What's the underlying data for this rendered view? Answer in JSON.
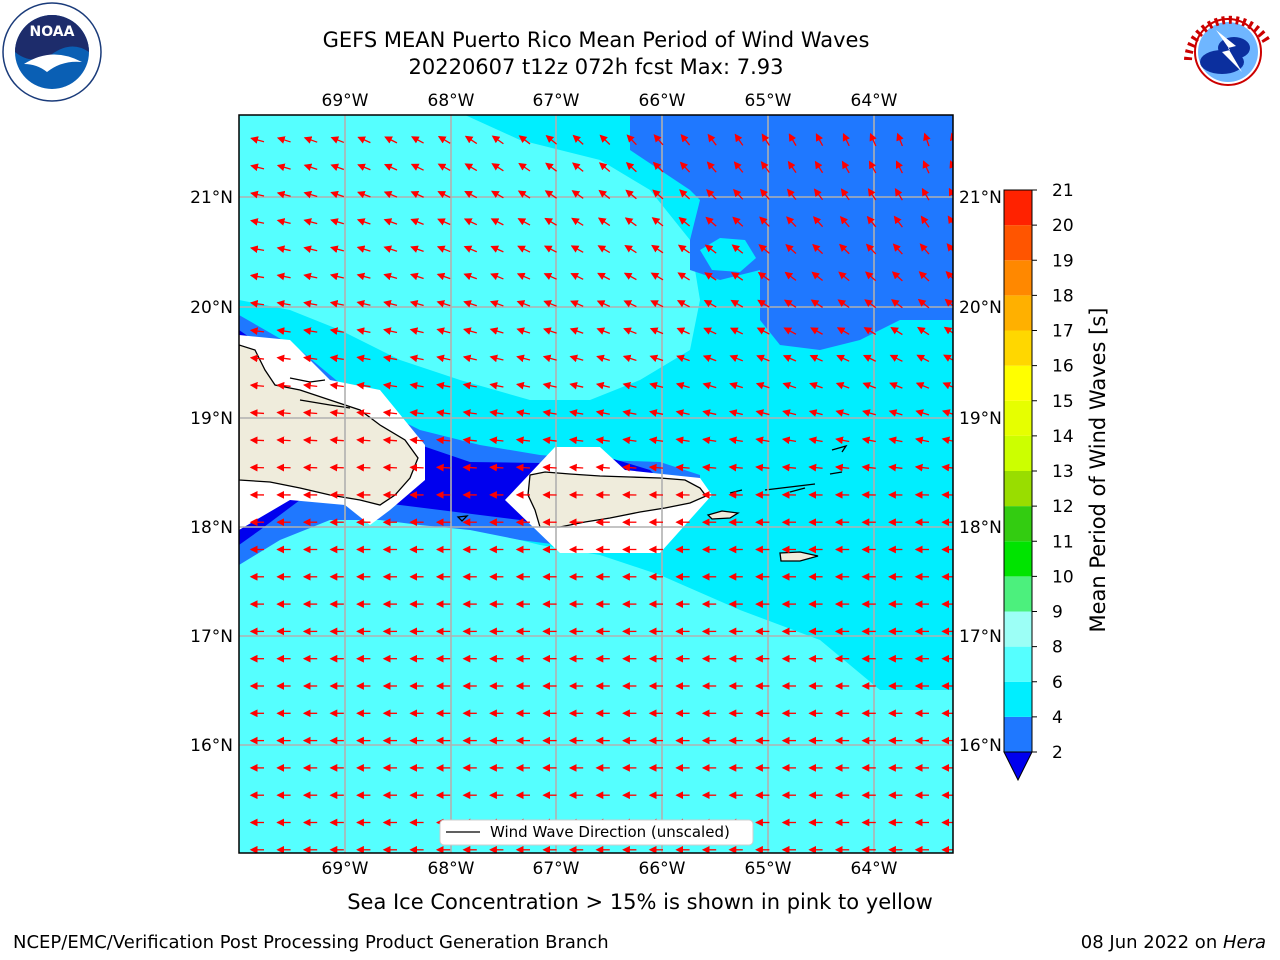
{
  "header": {
    "title_line1": "GEFS MEAN Puerto Rico Mean Period of Wind Waves",
    "title_line2": "20220607 t12z 072h fcst   Max: 7.93"
  },
  "logos": {
    "left": {
      "icon": "noaa-logo",
      "text": "NOAA"
    },
    "right": {
      "icon": "nws-logo",
      "text": "NATIONAL WEATHER SERVICE"
    }
  },
  "map": {
    "lon_labels": [
      "69°W",
      "68°W",
      "67°W",
      "66°W",
      "65°W",
      "64°W"
    ],
    "lat_labels": [
      "21°N",
      "20°N",
      "19°N",
      "18°N",
      "17°N",
      "16°N"
    ],
    "legend_label": "Wind Wave Direction (unscaled)",
    "arrow_color": "#ff0000",
    "land_color": "#efecdc",
    "ocean_colors": {
      "2-4": "#1f78ff",
      "4-6": "#00eeff",
      "6-8": "#55ffff",
      "below-2": "#0000ee"
    }
  },
  "colorbar": {
    "label": "Mean Period of Wind Waves [s]",
    "ticks": [
      "2",
      "4",
      "6",
      "8",
      "9",
      "10",
      "11",
      "12",
      "13",
      "14",
      "15",
      "16",
      "17",
      "18",
      "19",
      "20",
      "21"
    ],
    "colors": [
      "#1f78ff",
      "#00eeff",
      "#55ffff",
      "#9cfff6",
      "#4cf07d",
      "#00e400",
      "#33cc11",
      "#99dd00",
      "#ccff00",
      "#e6ff00",
      "#ffff00",
      "#ffd700",
      "#ffb000",
      "#ff8800",
      "#ff5500",
      "#ff2200"
    ],
    "under_color": "#0000ee",
    "over_color": "#ff0000"
  },
  "footer": {
    "subtitle": "Sea Ice Concentration > 15% is shown in pink to yellow",
    "left": "NCEP/EMC/Verification Post Processing Product Generation Branch",
    "right_prefix": "08 Jun 2022 on ",
    "right_host": "Hera"
  }
}
